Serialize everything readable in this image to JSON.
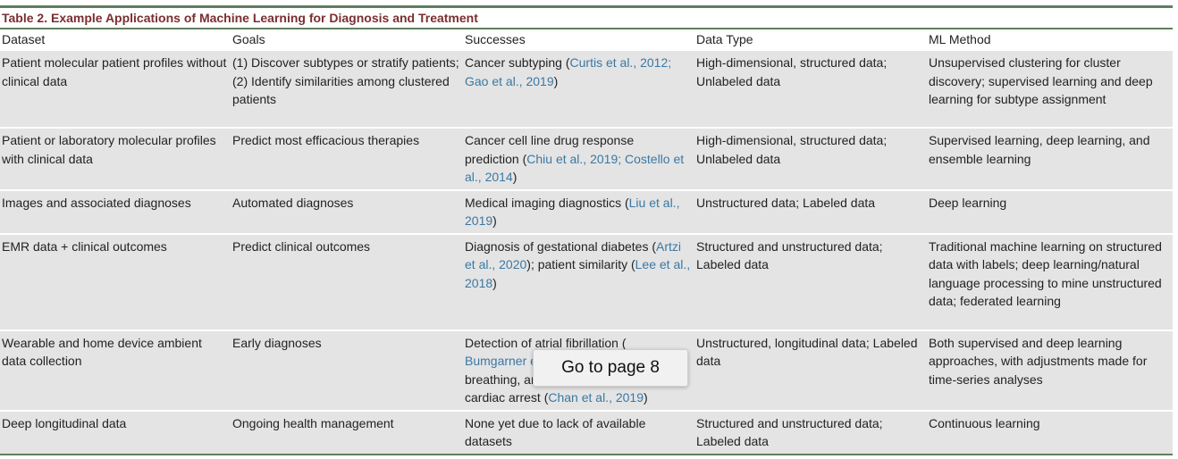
{
  "caption": "Table 2. Example Applications of Machine Learning for Diagnosis and Treatment",
  "headers": [
    "Dataset",
    "Goals",
    "Successes",
    "Data Type",
    "ML Method"
  ],
  "rows": [
    {
      "dataset": "Patient molecular patient profiles without clinical data",
      "goals": "(1) Discover subtypes or stratify patients; (2) Identify similarities among clustered patients",
      "successes_pre": "Cancer subtyping (",
      "successes_link": "Curtis et al., 2012; Gao et al., 2019",
      "successes_post": ")",
      "data_type": "High-dimensional, structured data; Unlabeled data",
      "ml_method": "Unsupervised clustering for cluster discovery; supervised learning and deep learning for subtype assignment"
    },
    {
      "dataset": "Patient or laboratory molecular profiles with clinical data",
      "goals": "Predict most efficacious therapies",
      "successes_pre": "Cancer cell line drug response prediction (",
      "successes_link": "Chiu et al., 2019; Costello et al., 2014",
      "successes_post": ")",
      "data_type": "High-dimensional, structured data; Unlabeled data",
      "ml_method": "Supervised learning, deep learning, and ensemble learning"
    },
    {
      "dataset": "Images and associated diagnoses",
      "goals": "Automated diagnoses",
      "successes_pre": "Medical imaging diagnostics (",
      "successes_link": "Liu et al., 2019",
      "successes_post": ")",
      "data_type": "Unstructured data; Labeled data",
      "ml_method": "Deep learning"
    },
    {
      "dataset": "EMR data + clinical outcomes",
      "goals": "Predict clinical outcomes",
      "successes_pre": "Diagnosis of gestational diabetes (",
      "successes_link": "Artzi et al., 2020",
      "successes_mid": "); patient similarity (",
      "successes_link2": "Lee et al., 2018",
      "successes_post": ")",
      "data_type": "Structured and unstructured data; Labeled data",
      "ml_method": "Traditional machine learning on structured data with labels; deep learning/natural language processing to mine unstructured data; federated learning"
    },
    {
      "dataset": "Wearable and home device ambient data collection",
      "goals": "Early diagnoses",
      "successes_pre": "Detection of atrial fibrillation (",
      "successes_link": "Bumgarner e",
      "successes_mid": "breathing, ar",
      "successes_mid2": "cardiac arrest (",
      "successes_link2": "Chan et al., 2019",
      "successes_post": ")",
      "data_type": "Unstructured, longitudinal data; Labeled data",
      "ml_method": "Both supervised and deep learning approaches, with adjustments made for time-series analyses"
    },
    {
      "dataset": "Deep longitudinal data",
      "goals": "Ongoing health management",
      "successes_pre": "None yet due to lack of available datasets",
      "data_type": "Structured and unstructured data; Labeled data",
      "ml_method": "Continuous learning"
    }
  ],
  "tooltip": "Go to page 8"
}
